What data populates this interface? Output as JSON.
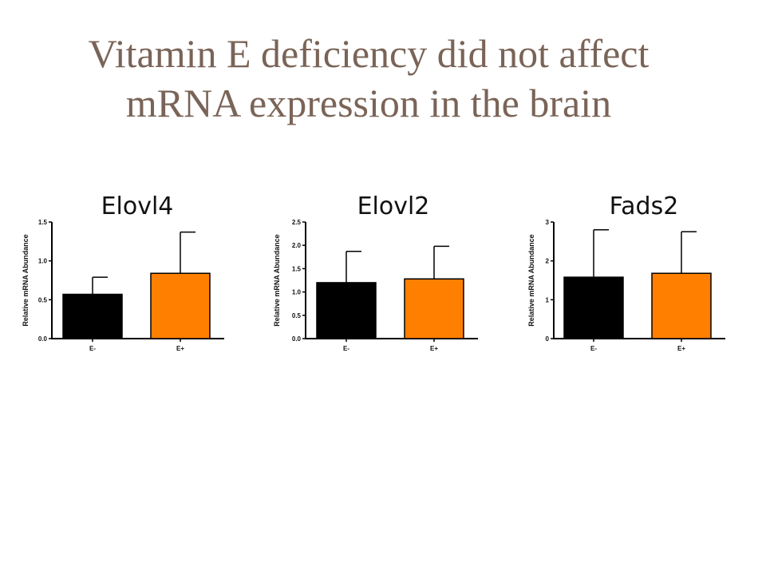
{
  "slide": {
    "title_line1": "Vitamin E deficiency did not affect",
    "title_line2": "mRNA expression in the brain",
    "title_color": "#7a6457"
  },
  "chart_data": [
    {
      "type": "bar",
      "title": "Elovl4",
      "ylabel": "Relative mRNA Abundance",
      "categories": [
        "E-",
        "E+"
      ],
      "values": [
        0.57,
        0.84
      ],
      "error_upper": [
        0.79,
        1.37
      ],
      "colors": [
        "#000000",
        "#ff7f00"
      ],
      "ylim": [
        0,
        1.5
      ],
      "yticks": [
        0.0,
        0.5,
        1.0,
        1.5
      ],
      "ytick_labels": [
        "0.0",
        "0.5",
        "1.0",
        "1.5"
      ],
      "grid": false
    },
    {
      "type": "bar",
      "title": "Elovl2",
      "ylabel": "Relative mRNA Abundance",
      "categories": [
        "E-",
        "E+"
      ],
      "values": [
        1.2,
        1.28
      ],
      "error_upper": [
        1.87,
        1.98
      ],
      "colors": [
        "#000000",
        "#ff7f00"
      ],
      "ylim": [
        0,
        2.5
      ],
      "yticks": [
        0.0,
        0.5,
        1.0,
        1.5,
        2.0,
        2.5
      ],
      "ytick_labels": [
        "0.0",
        "0.5",
        "1.0",
        "1.5",
        "2.0",
        "2.5"
      ],
      "grid": false
    },
    {
      "type": "bar",
      "title": "Fads2",
      "ylabel": "Relative mRNA Abundance",
      "categories": [
        "E-",
        "E+"
      ],
      "values": [
        1.58,
        1.68
      ],
      "error_upper": [
        2.8,
        2.75
      ],
      "colors": [
        "#000000",
        "#ff7f00"
      ],
      "ylim": [
        0,
        3
      ],
      "yticks": [
        0,
        1,
        2,
        3
      ],
      "ytick_labels": [
        "0",
        "1",
        "2",
        "3"
      ],
      "grid": false
    }
  ]
}
